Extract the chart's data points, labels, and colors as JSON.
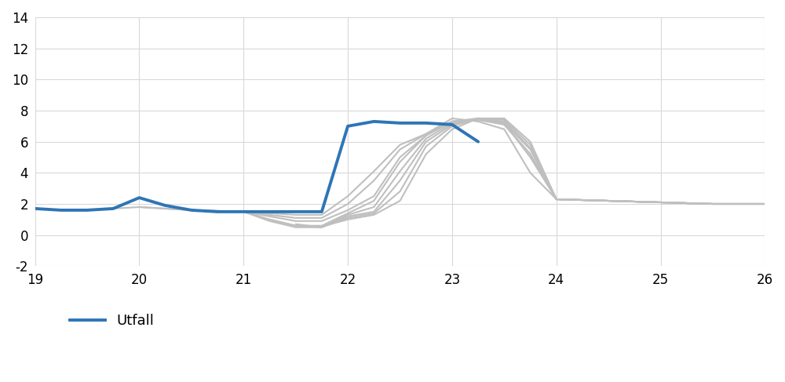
{
  "actual_x": [
    19,
    19.25,
    19.5,
    19.75,
    20,
    20.25,
    20.5,
    20.75,
    21,
    21.25,
    21.5,
    21.75,
    22,
    22.25,
    22.5,
    22.75,
    23,
    23.25
  ],
  "actual_y": [
    1.7,
    1.6,
    1.6,
    1.7,
    2.4,
    1.9,
    1.6,
    1.5,
    1.5,
    1.5,
    1.5,
    1.5,
    7.0,
    7.3,
    7.2,
    7.2,
    7.1,
    6.0
  ],
  "forecasts": [
    {
      "x": [
        19.5,
        20.0,
        20.5,
        21.0,
        21.25,
        21.5,
        21.75,
        22.0,
        22.25,
        22.5,
        22.75,
        23.0,
        23.25,
        23.5,
        23.75,
        24.0,
        24.5,
        25.0,
        25.5,
        26.0
      ],
      "y": [
        1.6,
        1.8,
        1.6,
        1.5,
        1.4,
        1.3,
        1.3,
        2.5,
        4.1,
        5.8,
        6.5,
        7.5,
        7.3,
        6.8,
        4.0,
        2.3,
        2.2,
        2.1,
        2.0,
        2.0
      ]
    },
    {
      "x": [
        20.0,
        20.5,
        21.0,
        21.25,
        21.5,
        21.75,
        22.0,
        22.25,
        22.5,
        22.75,
        23.0,
        23.25,
        23.5,
        23.75,
        24.0,
        24.5,
        25.0,
        25.5,
        26.0
      ],
      "y": [
        1.8,
        1.6,
        1.5,
        1.3,
        1.1,
        1.1,
        2.0,
        3.5,
        5.5,
        6.5,
        7.3,
        7.4,
        7.2,
        5.0,
        2.3,
        2.2,
        2.1,
        2.0,
        2.0
      ]
    },
    {
      "x": [
        20.5,
        21.0,
        21.25,
        21.5,
        21.75,
        22.0,
        22.25,
        22.5,
        22.75,
        23.0,
        23.25,
        23.5,
        23.75,
        24.0,
        24.5,
        25.0,
        25.5,
        26.0
      ],
      "y": [
        1.6,
        1.5,
        1.2,
        0.9,
        0.9,
        1.6,
        2.5,
        5.0,
        6.4,
        7.3,
        7.4,
        7.1,
        5.2,
        2.3,
        2.2,
        2.1,
        2.0,
        2.0
      ]
    },
    {
      "x": [
        21.0,
        21.25,
        21.5,
        21.75,
        22.0,
        22.25,
        22.5,
        22.75,
        23.0,
        23.25,
        23.5,
        23.75,
        24.0,
        24.5,
        25.0,
        25.5,
        26.0
      ],
      "y": [
        1.5,
        1.0,
        0.6,
        0.6,
        1.4,
        2.2,
        4.7,
        6.4,
        7.3,
        7.5,
        7.1,
        5.2,
        2.3,
        2.2,
        2.1,
        2.0,
        2.0
      ]
    },
    {
      "x": [
        21.0,
        21.25,
        21.5,
        21.75,
        22.0,
        22.25,
        22.5,
        22.75,
        23.0,
        23.25,
        23.5,
        23.75,
        24.0,
        24.5,
        25.0,
        25.5,
        26.0
      ],
      "y": [
        1.5,
        0.9,
        0.5,
        0.5,
        1.3,
        1.8,
        4.1,
        6.2,
        7.2,
        7.5,
        7.2,
        5.5,
        2.3,
        2.2,
        2.1,
        2.0,
        2.0
      ]
    },
    {
      "x": [
        21.25,
        21.5,
        21.75,
        22.0,
        22.25,
        22.5,
        22.75,
        23.0,
        23.25,
        23.5,
        23.75,
        24.0,
        24.5,
        25.0,
        25.5,
        26.0
      ],
      "y": [
        1.0,
        0.6,
        0.5,
        1.2,
        1.5,
        3.5,
        6.0,
        7.1,
        7.5,
        7.3,
        5.6,
        2.3,
        2.2,
        2.1,
        2.0,
        2.0
      ]
    },
    {
      "x": [
        21.5,
        21.75,
        22.0,
        22.25,
        22.5,
        22.75,
        23.0,
        23.25,
        23.5,
        23.75,
        24.0,
        24.5,
        25.0,
        25.5,
        26.0
      ],
      "y": [
        0.7,
        0.5,
        1.1,
        1.4,
        2.8,
        5.7,
        7.0,
        7.5,
        7.4,
        5.8,
        2.3,
        2.2,
        2.1,
        2.0,
        2.0
      ]
    },
    {
      "x": [
        21.75,
        22.0,
        22.25,
        22.5,
        22.75,
        23.0,
        23.25,
        23.5,
        23.75,
        24.0,
        24.5,
        25.0,
        25.5,
        26.0
      ],
      "y": [
        0.55,
        1.0,
        1.3,
        2.2,
        5.2,
        6.8,
        7.5,
        7.5,
        6.0,
        2.3,
        2.2,
        2.1,
        2.0,
        2.0
      ]
    }
  ],
  "actual_color": "#2E75B6",
  "forecast_color": "#BFBFBF",
  "actual_linewidth": 2.8,
  "forecast_linewidth": 1.5,
  "xlim": [
    19,
    26
  ],
  "ylim": [
    -2,
    14
  ],
  "xticks": [
    19,
    20,
    21,
    22,
    23,
    24,
    25,
    26
  ],
  "yticks": [
    -2,
    0,
    2,
    4,
    6,
    8,
    10,
    12,
    14
  ],
  "legend_label": "Utfall",
  "background_color": "#ffffff",
  "grid_color": "#D9D9D9"
}
